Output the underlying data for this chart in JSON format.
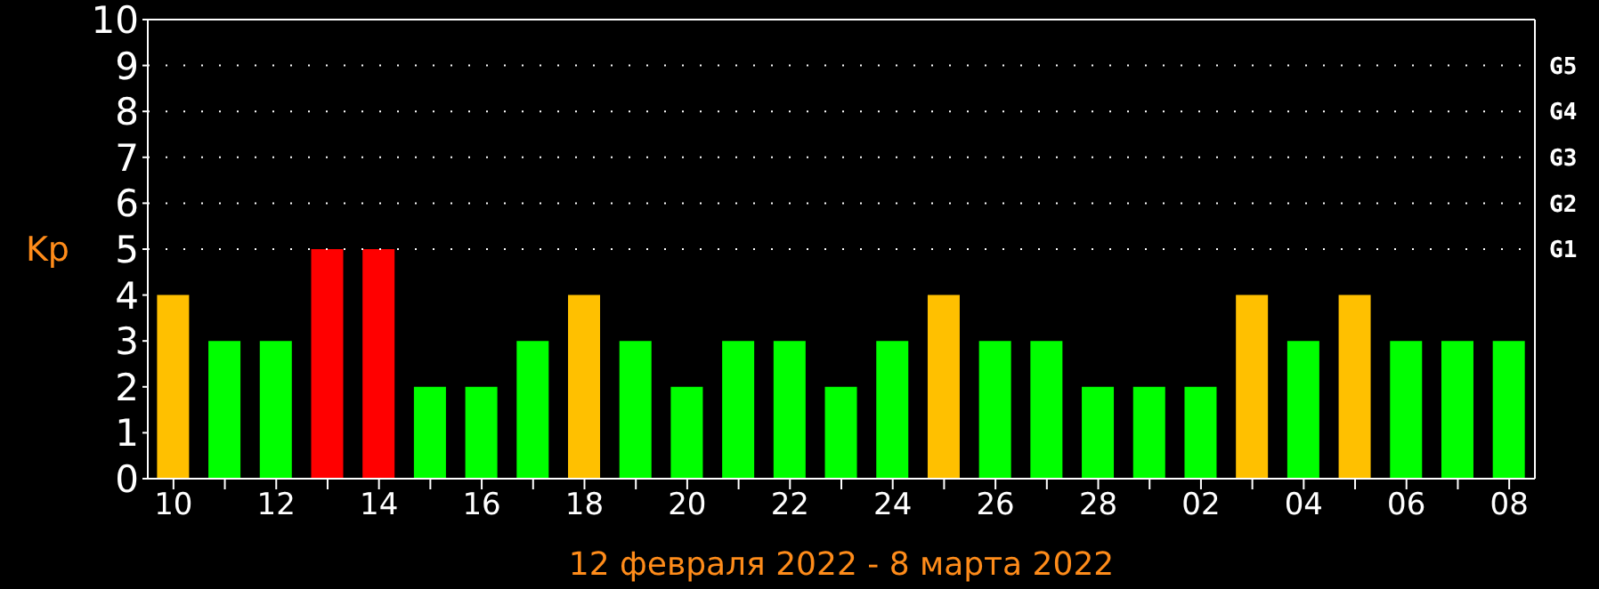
{
  "chart_data": {
    "type": "bar",
    "xlabel": "12 февраля 2022 - 8 марта 2022",
    "ylabel": "Kp",
    "categories": [
      "10",
      null,
      "12",
      null,
      "14",
      null,
      "16",
      null,
      "18",
      null,
      "20",
      null,
      "22",
      null,
      "24",
      null,
      "26",
      null,
      "28",
      null,
      "02",
      null,
      "04",
      null,
      "06",
      null,
      "08"
    ],
    "values": [
      4,
      3,
      3,
      5,
      5,
      2,
      2,
      3,
      4,
      3,
      2,
      3,
      3,
      2,
      3,
      4,
      3,
      3,
      2,
      2,
      2,
      4,
      3,
      4,
      3,
      3,
      3
    ],
    "colors": [
      "#ffc000",
      "#00ff00",
      "#00ff00",
      "#ff0000",
      "#ff0000",
      "#00ff00",
      "#00ff00",
      "#00ff00",
      "#ffc000",
      "#00ff00",
      "#00ff00",
      "#00ff00",
      "#00ff00",
      "#00ff00",
      "#00ff00",
      "#ffc000",
      "#00ff00",
      "#00ff00",
      "#00ff00",
      "#00ff00",
      "#00ff00",
      "#ffc000",
      "#00ff00",
      "#ffc000",
      "#00ff00",
      "#00ff00",
      "#00ff00"
    ],
    "ylim": [
      0,
      10
    ],
    "yticks": [
      0,
      1,
      2,
      3,
      4,
      5,
      6,
      7,
      8,
      9,
      10
    ],
    "ref_lines": [
      {
        "axis": "y",
        "value": 5,
        "label": "G1",
        "color": "#ffffff",
        "line_style": "dotted"
      },
      {
        "axis": "y",
        "value": 6,
        "label": "G2",
        "color": "#ffffff",
        "line_style": "dotted"
      },
      {
        "axis": "y",
        "value": 7,
        "label": "G3",
        "color": "#ffffff",
        "line_style": "dotted"
      },
      {
        "axis": "y",
        "value": 8,
        "label": "G4",
        "color": "#ffffff",
        "line_style": "dotted"
      },
      {
        "axis": "y",
        "value": 9,
        "label": "G5",
        "color": "#ffffff",
        "line_style": "dotted"
      }
    ]
  }
}
